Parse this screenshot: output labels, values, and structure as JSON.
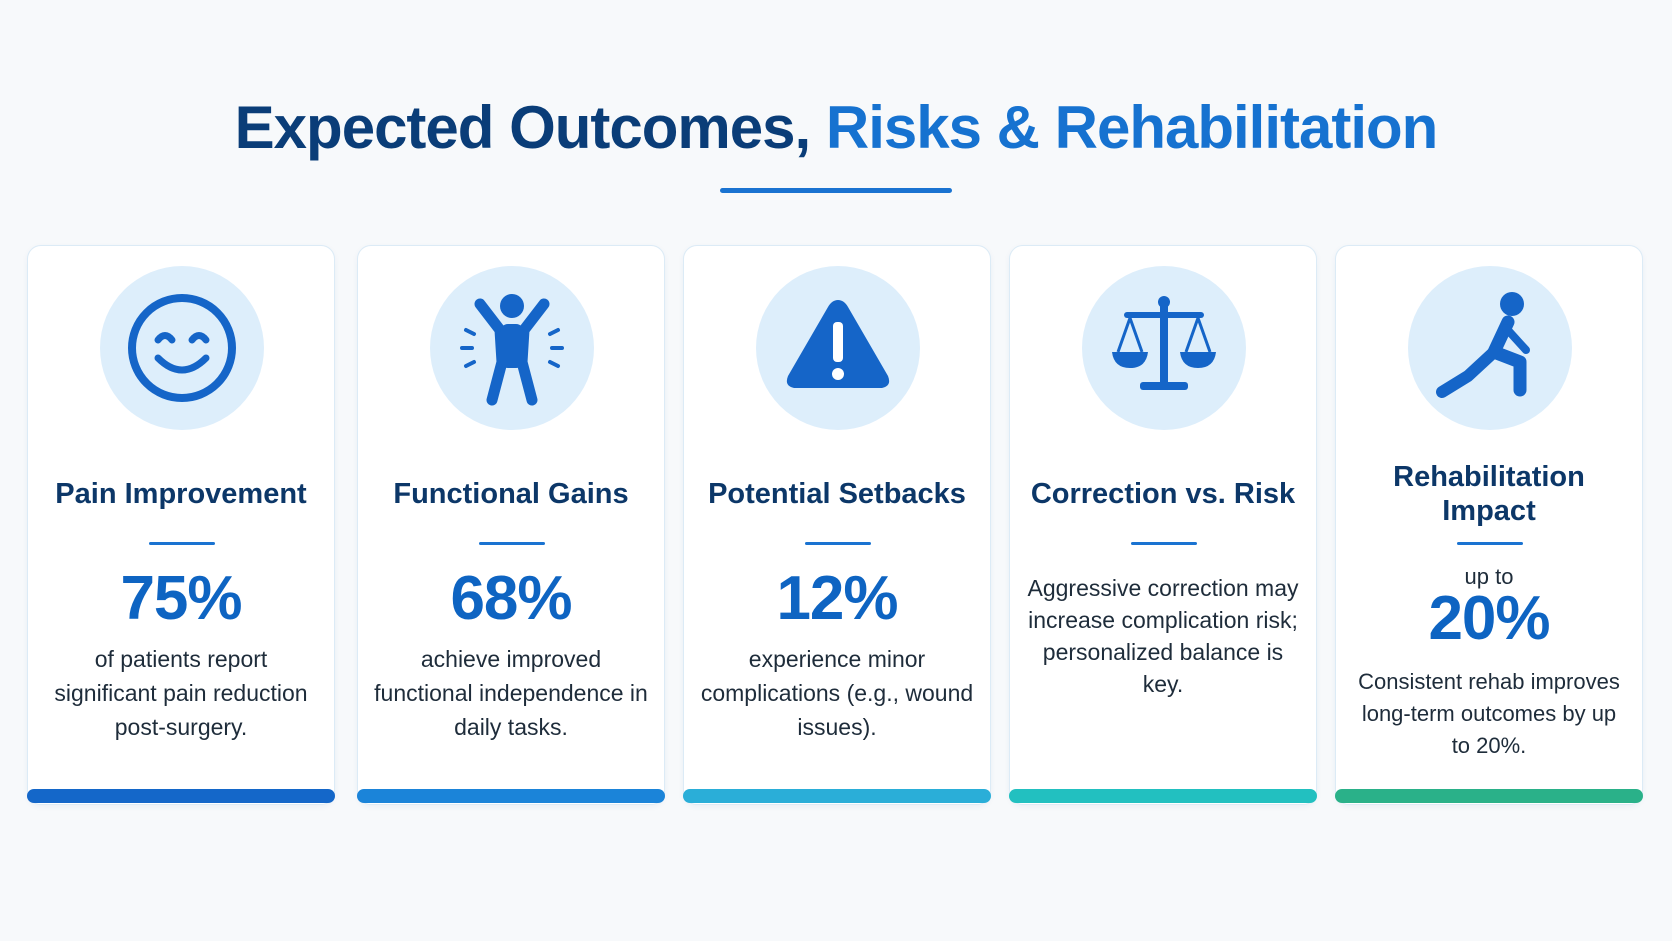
{
  "title": {
    "part1": "Expected Outcomes, ",
    "part2": "Risks & Rehabilitation"
  },
  "colors": {
    "title_dark": "#0a3d78",
    "title_accent": "#1672d0",
    "icon_bg": "#ddeefb",
    "icon_fg": "#1565c8",
    "bars": [
      "#1467c9",
      "#1b84d9",
      "#2aaed8",
      "#22c0c0",
      "#2ab189"
    ]
  },
  "cards": [
    {
      "icon": "smiley-face-icon",
      "title": "Pain Improvement",
      "stat": "75%",
      "description": "of patients report significant pain reduction post-surgery."
    },
    {
      "icon": "person-arms-raised-icon",
      "title": "Functional Gains",
      "stat": "68%",
      "description": "achieve improved functional independence in daily tasks."
    },
    {
      "icon": "warning-triangle-icon",
      "title": "Potential Setbacks",
      "stat": "12%",
      "description": "experience minor complications (e.g., wound issues)."
    },
    {
      "icon": "balance-scale-icon",
      "title": "Correction vs. Risk",
      "description": "Aggressive correction may increase complication risk; personalized balance is key."
    },
    {
      "icon": "person-stretching-icon",
      "title": "Rehabilitation Impact",
      "stat_prefix": "up to",
      "stat": "20%",
      "description": "Consistent rehab improves long-term outcomes by up to 20%."
    }
  ]
}
